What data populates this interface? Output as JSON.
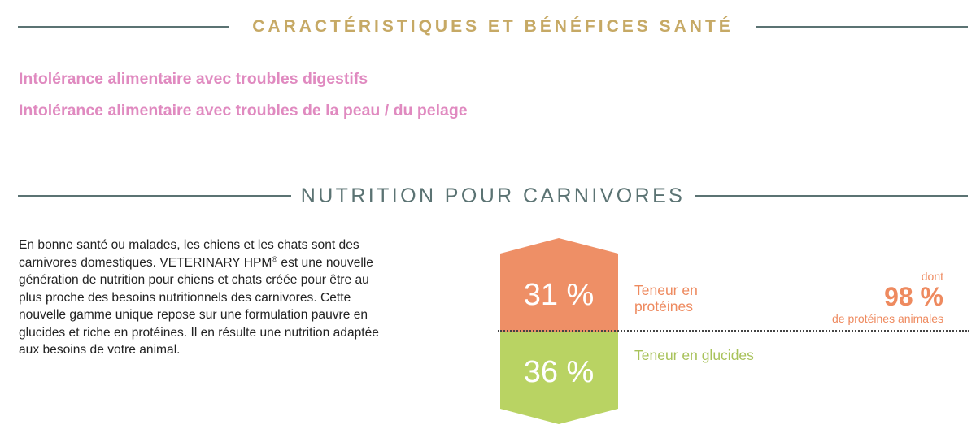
{
  "section1": {
    "title": "CARACTÉRISTIQUES ET BÉNÉFICES SANTÉ",
    "benefits": [
      "Intolérance alimentaire avec troubles digestifs",
      "Intolérance alimentaire avec troubles de la peau / du pelage"
    ]
  },
  "section2": {
    "title": "NUTRITION POUR CARNIVORES",
    "intro_lines": [
      "En bonne santé ou malades, les chiens et les chats sont des",
      "carnivores domestiques. VETERINARY HPM",
      " est une nouvelle",
      "génération de nutrition pour chiens et chats créée pour être au",
      "plus proche des besoins nutritionnels des carnivores. Cette",
      "nouvelle gamme unique repose sur une formulation pauvre en",
      "glucides et riche en protéines. Il en résulte une nutrition adaptée",
      "aux besoins de votre animal."
    ],
    "registered_mark": "®"
  },
  "chart_data": {
    "type": "bar",
    "categories": [
      "Teneur en protéines",
      "Teneur en glucides"
    ],
    "values": [
      31,
      36
    ],
    "value_labels": [
      "31 %",
      "36 %"
    ],
    "unit": "%",
    "colors": [
      "#ee8f66",
      "#b9d363"
    ],
    "protein_label_lines": [
      "Teneur en",
      "protéines"
    ],
    "glucides_label": "Teneur en glucides",
    "annotation": {
      "prefix": "dont",
      "value": 98,
      "value_label": "98 %",
      "suffix": "de protéines animales"
    }
  },
  "colors": {
    "heading1": "#c6a965",
    "heading2": "#5b7373",
    "benefit": "#e08ac0",
    "protein": "#ee8f66",
    "glucides": "#b9d363"
  }
}
